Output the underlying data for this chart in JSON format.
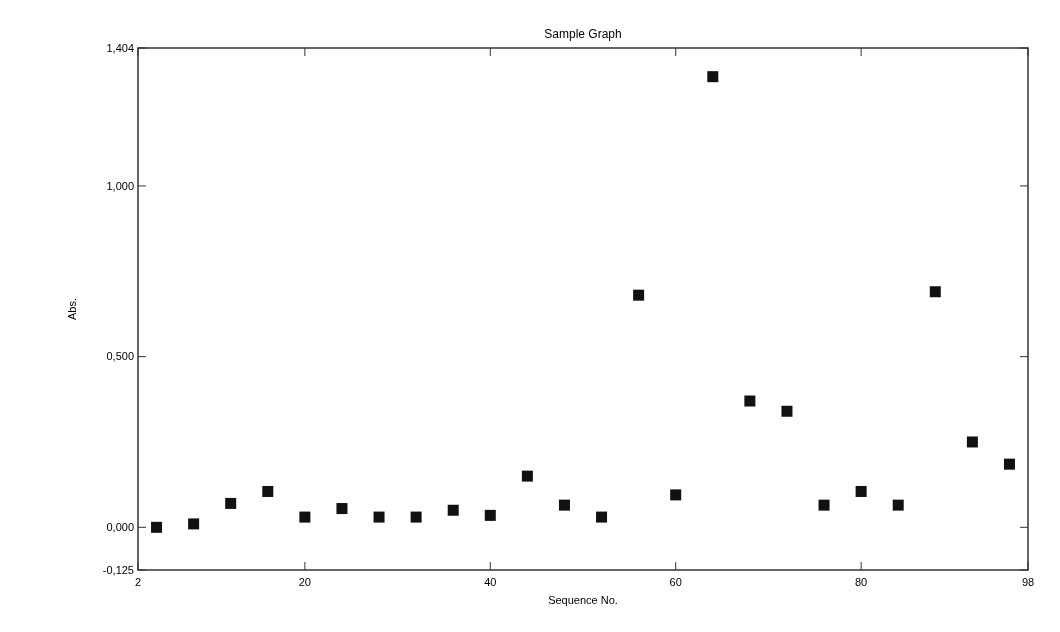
{
  "chart_data": {
    "type": "scatter",
    "title": "Sample Graph",
    "xlabel": "Sequence No.",
    "ylabel": "Abs.",
    "x": [
      4,
      8,
      12,
      16,
      20,
      24,
      28,
      32,
      36,
      40,
      44,
      48,
      52,
      56,
      60,
      64,
      68,
      72,
      76,
      80,
      84,
      88,
      92,
      96
    ],
    "series": [
      {
        "color": "#111111",
        "values": [
          0.0,
          0.01,
          0.07,
          0.105,
          0.03,
          0.055,
          0.03,
          0.03,
          0.05,
          0.035,
          0.15,
          0.065,
          0.03,
          0.68,
          0.095,
          1.32,
          0.37,
          0.34,
          0.065,
          0.105,
          0.065,
          0.69,
          0.25,
          0.185
        ]
      }
    ],
    "marker": "square",
    "xlim": [
      2,
      98
    ],
    "xticks": [
      2,
      20,
      40,
      60,
      80,
      98
    ],
    "ylim": [
      -0.125,
      1.404
    ],
    "yticks": [
      {
        "value": -0.125,
        "label": "-0,125"
      },
      {
        "value": 0,
        "label": "0,000"
      },
      {
        "value": 0.5,
        "label": "0,500"
      },
      {
        "value": 1,
        "label": "1,000"
      },
      {
        "value": 1.404,
        "label": "1,404"
      }
    ],
    "tick_labels": [
      "x",
      "y"
    ]
  }
}
